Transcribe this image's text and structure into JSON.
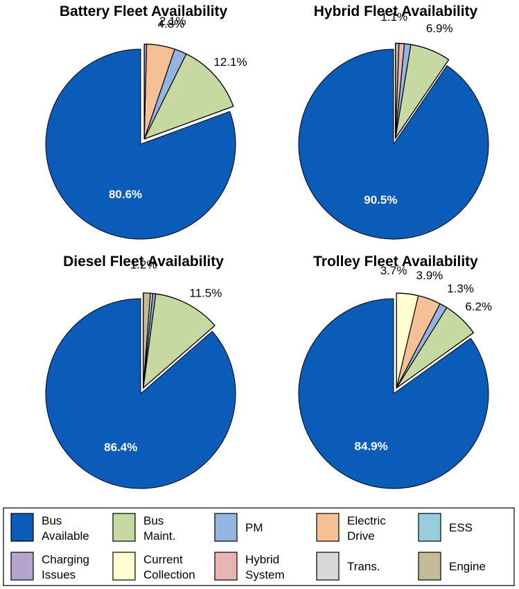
{
  "legend": {
    "items": [
      {
        "key": "bus_available",
        "lines": [
          "Bus",
          "Available"
        ],
        "color": "#0b5cb8"
      },
      {
        "key": "bus_maint",
        "lines": [
          "Bus",
          "Maint."
        ],
        "color": "#c5d9a0"
      },
      {
        "key": "pm",
        "lines": [
          "PM"
        ],
        "color": "#94b4e4"
      },
      {
        "key": "electric_drive",
        "lines": [
          "Electric",
          "Drive"
        ],
        "color": "#f6c096"
      },
      {
        "key": "ess",
        "lines": [
          "ESS"
        ],
        "color": "#96cede"
      },
      {
        "key": "charging_issues",
        "lines": [
          "Charging",
          "Issues"
        ],
        "color": "#b4a4d0"
      },
      {
        "key": "current_collection",
        "lines": [
          "Current",
          "Collection"
        ],
        "color": "#fefed0"
      },
      {
        "key": "hybrid_system",
        "lines": [
          "Hybrid",
          "System"
        ],
        "color": "#e8b4b4"
      },
      {
        "key": "trans",
        "lines": [
          "Trans."
        ],
        "color": "#d8d8d8"
      },
      {
        "key": "engine",
        "lines": [
          "Engine"
        ],
        "color": "#c4bc98"
      }
    ]
  },
  "chart_data": [
    {
      "type": "pie",
      "title": "Battery Fleet Availability",
      "slices": [
        {
          "category": "bus_available",
          "value": 80.6,
          "label": "80.6%",
          "exploded": false
        },
        {
          "category": "bus_maint",
          "value": 12.1,
          "label": "12.1%",
          "exploded": true
        },
        {
          "category": "pm",
          "value": 2.1,
          "label": "2.1%",
          "exploded": true
        },
        {
          "category": "electric_drive",
          "value": 4.8,
          "label": "4.8%",
          "exploded": true
        },
        {
          "category": "charging_issues",
          "value": 0.4,
          "label": "",
          "exploded": true
        }
      ]
    },
    {
      "type": "pie",
      "title": "Hybrid Fleet Availability",
      "slices": [
        {
          "category": "bus_available",
          "value": 90.5,
          "label": "90.5%",
          "exploded": false
        },
        {
          "category": "bus_maint",
          "value": 6.9,
          "label": "6.9%",
          "exploded": true
        },
        {
          "category": "pm",
          "value": 1.1,
          "label": "1.1%",
          "exploded": true
        },
        {
          "category": "hybrid_system",
          "value": 0.9,
          "label": "",
          "exploded": true
        },
        {
          "category": "engine",
          "value": 0.6,
          "label": "",
          "exploded": true
        }
      ]
    },
    {
      "type": "pie",
      "title": "Diesel Fleet Availability",
      "slices": [
        {
          "category": "bus_available",
          "value": 86.4,
          "label": "86.4%",
          "exploded": false
        },
        {
          "category": "bus_maint",
          "value": 11.5,
          "label": "11.5%",
          "exploded": true
        },
        {
          "category": "pm",
          "value": 0.5,
          "label": "",
          "exploded": true
        },
        {
          "category": "trans",
          "value": 0.4,
          "label": "",
          "exploded": true
        },
        {
          "category": "engine",
          "value": 1.2,
          "label": "1.2%",
          "exploded": true
        }
      ]
    },
    {
      "type": "pie",
      "title": "Trolley Fleet Availability",
      "slices": [
        {
          "category": "bus_available",
          "value": 84.9,
          "label": "84.9%",
          "exploded": false
        },
        {
          "category": "bus_maint",
          "value": 6.2,
          "label": "6.2%",
          "exploded": true
        },
        {
          "category": "pm",
          "value": 1.3,
          "label": "1.3%",
          "exploded": true
        },
        {
          "category": "electric_drive",
          "value": 3.9,
          "label": "3.9%",
          "exploded": true
        },
        {
          "category": "current_collection",
          "value": 3.7,
          "label": "3.7%",
          "exploded": true
        }
      ]
    }
  ]
}
